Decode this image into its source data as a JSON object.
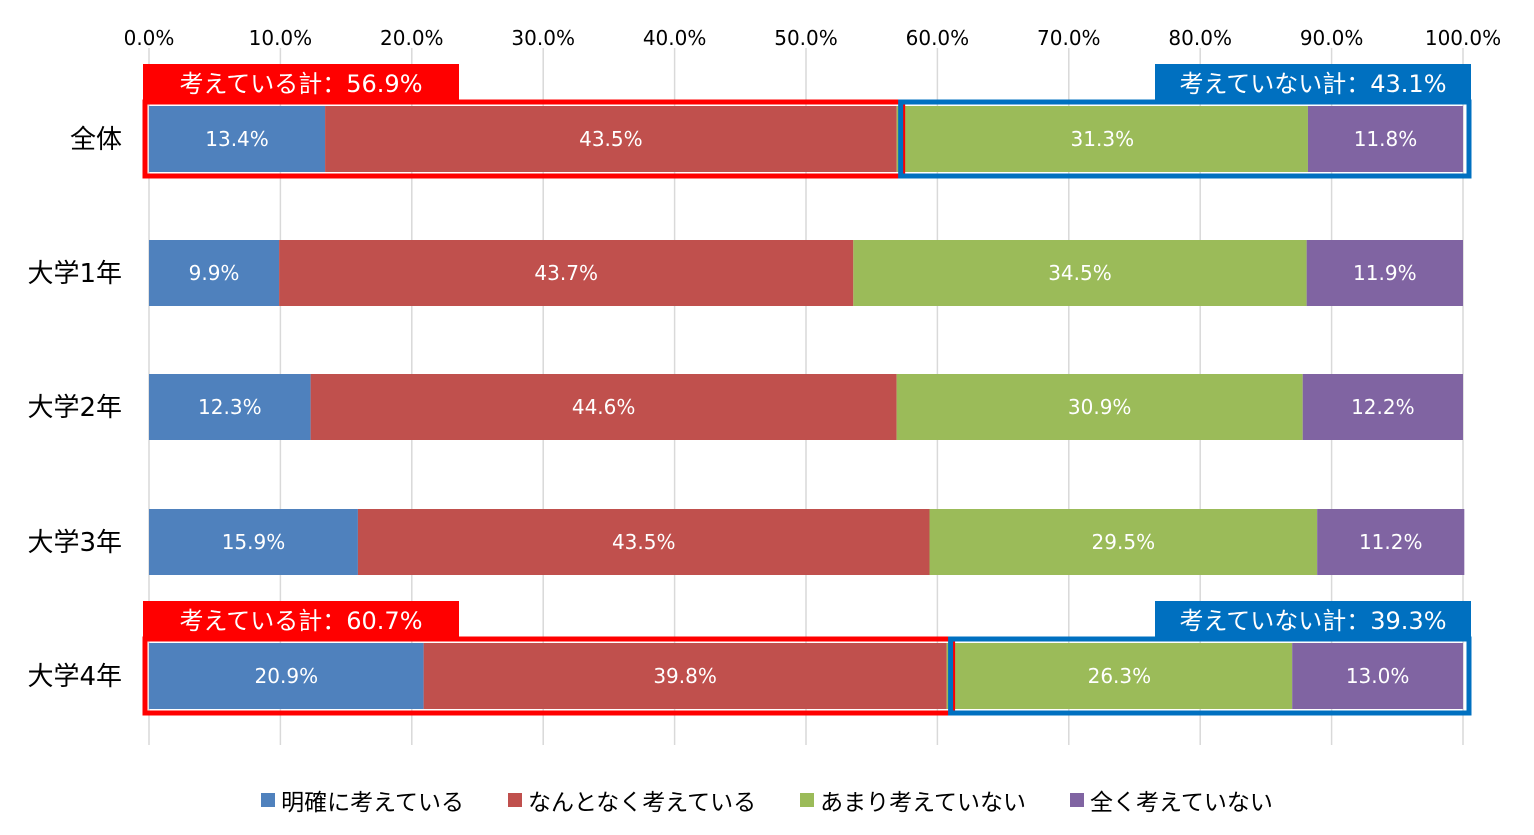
{
  "chart_data": {
    "type": "bar",
    "orientation": "horizontal-stacked-100",
    "xlim": [
      0,
      100
    ],
    "x_ticks": [
      "0.0%",
      "10.0%",
      "20.0%",
      "30.0%",
      "40.0%",
      "50.0%",
      "60.0%",
      "70.0%",
      "80.0%",
      "90.0%",
      "100.0%"
    ],
    "categories": [
      "全体",
      "大学1年",
      "大学2年",
      "大学3年",
      "大学4年"
    ],
    "series": [
      {
        "name": "明確に考えている",
        "color": "#4f81bd",
        "values": [
          13.4,
          9.9,
          12.3,
          15.9,
          20.9
        ]
      },
      {
        "name": "なんとなく考えている",
        "color": "#c0504d",
        "values": [
          43.5,
          43.7,
          44.6,
          43.5,
          39.8
        ]
      },
      {
        "name": "あまり考えていない",
        "color": "#9bbb59",
        "values": [
          31.3,
          34.5,
          30.9,
          29.5,
          26.3
        ]
      },
      {
        "name": "全く考えていない",
        "color": "#8064a2",
        "values": [
          11.8,
          11.9,
          12.2,
          11.2,
          13.0
        ]
      }
    ],
    "data_labels": [
      [
        "13.4%",
        "43.5%",
        "31.3%",
        "11.8%"
      ],
      [
        "9.9%",
        "43.7%",
        "34.5%",
        "11.9%"
      ],
      [
        "12.3%",
        "44.6%",
        "30.9%",
        "12.2%"
      ],
      [
        "15.9%",
        "43.5%",
        "29.5%",
        "11.2%"
      ],
      [
        "20.9%",
        "39.8%",
        "26.3%",
        "13.0%"
      ]
    ],
    "grid": true,
    "legend_position": "bottom",
    "annotations": [
      {
        "category": "全体",
        "side": "left",
        "text": "考えている計：56.9%",
        "color": "#ff0000",
        "start": 0,
        "end": 56.9
      },
      {
        "category": "全体",
        "side": "right",
        "text": "考えていない計：43.1%",
        "color": "#0070c0",
        "start": 56.9,
        "end": 100
      },
      {
        "category": "大学4年",
        "side": "left",
        "text": "考えている計：60.7%",
        "color": "#ff0000",
        "start": 0,
        "end": 60.7
      },
      {
        "category": "大学4年",
        "side": "right",
        "text": "考えていない計：39.3%",
        "color": "#0070c0",
        "start": 60.7,
        "end": 100
      }
    ]
  }
}
